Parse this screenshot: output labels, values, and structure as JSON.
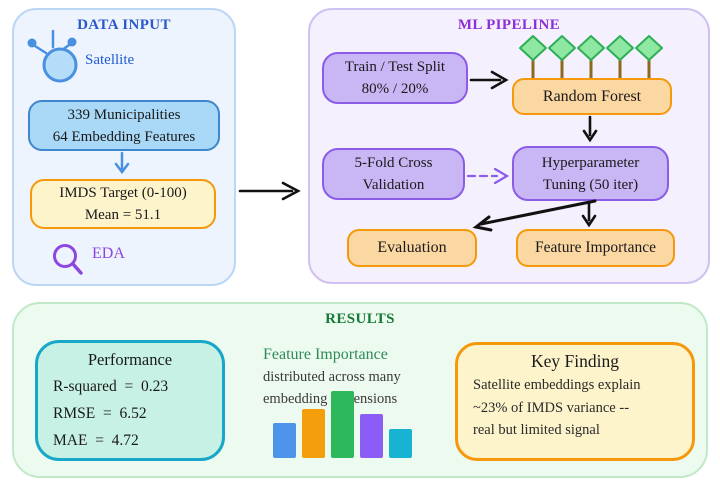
{
  "panels": {
    "data_input": {
      "title": "DATA INPUT",
      "satellite_label": "Satellite",
      "municipalities_box": {
        "line1": "339 Municipalities",
        "line2": "64 Embedding Features"
      },
      "imds_box": {
        "line1": "IMDS Target (0-100)",
        "line2": "Mean = 51.1"
      },
      "eda_label": "EDA"
    },
    "ml_pipeline": {
      "title": "ML PIPELINE",
      "train_test_box": {
        "line1": "Train / Test Split",
        "line2": "80% / 20%"
      },
      "random_forest_label": "Random Forest",
      "cross_validation_box": {
        "line1": "5-Fold Cross",
        "line2": "Validation"
      },
      "hyperparameter_box": {
        "line1": "Hyperparameter",
        "line2": "Tuning (50 iter)"
      },
      "evaluation_label": "Evaluation",
      "feature_importance_label": "Feature Importance"
    },
    "results": {
      "title": "RESULTS",
      "performance_box": {
        "title": "Performance",
        "metrics": [
          "R-squared  =  0.23",
          "RMSE  =  6.52",
          "MAE  =  4.72"
        ]
      },
      "feature_importance_text": {
        "title": "Feature Importance",
        "line1": "distributed across many",
        "line2": "embedding dimensions"
      },
      "key_finding_box": {
        "title": "Key Finding",
        "lines": [
          "Satellite embeddings explain",
          "~23% of IMDS variance --",
          "real but limited signal"
        ]
      }
    }
  },
  "flow": [
    "municipalities-box -> imds-target-box",
    "data-input-panel -> ml-pipeline-panel",
    "train-test-split -> random-forest",
    "random-forest -> hyperparameter-tuning",
    "cross-validation -> hyperparameter-tuning (dashed)",
    "hyperparameter-tuning -> feature-importance",
    "hyperparameter-tuning -> evaluation"
  ],
  "icons": {
    "satellite": "satellite-icon",
    "eda": "magnifier-icon",
    "random_forest_trees": "tree-icon x5"
  },
  "colors": {
    "data_panel_border": "#bcd6f5",
    "ml_panel_border": "#cfc1f1",
    "results_panel_border": "#c0e9c7",
    "blue_accent": "#3e86ce",
    "purple_accent": "#8a5ce8",
    "orange_accent": "#f5990b",
    "teal_accent": "#17a7c9",
    "title_blue": "#2a58cc",
    "title_purple": "#8c2fd6",
    "title_green": "#157a36"
  },
  "chart_data": {
    "type": "bar",
    "title": "Feature Importance",
    "subtitle": "distributed across many embedding dimensions",
    "values": [
      35,
      49,
      67,
      44,
      29
    ],
    "note": "relative importance heights in px; no axes or tick labels shown",
    "bar_colors": [
      "#4d94ea",
      "#f59e0b",
      "#2db85c",
      "#8b5cf6",
      "#18b2d2"
    ]
  }
}
